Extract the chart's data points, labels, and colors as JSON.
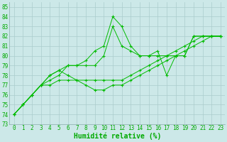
{
  "background_color": "#cce8e8",
  "grid_color": "#aacccc",
  "line_color": "#00bb00",
  "marker_color": "#00bb00",
  "xlabel": "Humidité relative (%)",
  "xlabel_color": "#00aa00",
  "tick_color": "#00aa00",
  "xlim": [
    -0.5,
    23.5
  ],
  "ylim": [
    73,
    85.5
  ],
  "xticks": [
    0,
    1,
    2,
    3,
    4,
    5,
    6,
    7,
    8,
    9,
    10,
    11,
    12,
    13,
    14,
    15,
    16,
    17,
    18,
    19,
    20,
    21,
    22,
    23
  ],
  "yticks": [
    73,
    74,
    75,
    76,
    77,
    78,
    79,
    80,
    81,
    82,
    83,
    84,
    85
  ],
  "series": [
    [
      74.0,
      75.0,
      76.0,
      77.0,
      78.0,
      78.5,
      79.0,
      79.0,
      79.5,
      80.5,
      81.0,
      84.0,
      83.0,
      81.0,
      80.0,
      80.0,
      80.0,
      80.0,
      80.0,
      80.0,
      82.0,
      82.0,
      82.0,
      82.0
    ],
    [
      74.0,
      75.0,
      76.0,
      77.0,
      77.5,
      78.0,
      79.0,
      79.0,
      79.0,
      79.0,
      80.0,
      83.0,
      81.0,
      80.5,
      80.0,
      80.0,
      80.5,
      78.0,
      80.0,
      80.0,
      82.0,
      82.0,
      82.0,
      82.0
    ],
    [
      74.0,
      75.0,
      76.0,
      77.0,
      78.0,
      78.5,
      78.0,
      77.5,
      77.0,
      76.5,
      76.5,
      77.0,
      77.0,
      77.5,
      78.0,
      78.5,
      79.0,
      79.5,
      80.0,
      80.5,
      81.0,
      81.5,
      82.0,
      82.0
    ],
    [
      74.0,
      75.0,
      76.0,
      77.0,
      77.0,
      77.5,
      77.5,
      77.5,
      77.5,
      77.5,
      77.5,
      77.5,
      77.5,
      78.0,
      78.5,
      79.0,
      79.5,
      80.0,
      80.5,
      81.0,
      81.5,
      82.0,
      82.0,
      82.0
    ]
  ],
  "fontsize_tick": 5.5,
  "fontsize_label": 7
}
